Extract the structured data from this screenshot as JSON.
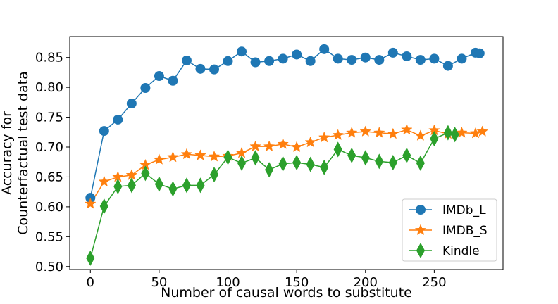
{
  "chart_data": {
    "type": "line",
    "xlabel": "Number of causal words to substitute",
    "ylabel_lines": [
      "Accuracy for",
      "Counterfactual test data"
    ],
    "xlim": [
      -15,
      300
    ],
    "ylim": [
      0.495,
      0.885
    ],
    "xticks": [
      0,
      50,
      100,
      150,
      200,
      250
    ],
    "yticks": [
      0.5,
      0.55,
      0.6,
      0.65,
      0.7,
      0.75,
      0.8,
      0.85
    ],
    "grid": false,
    "legend_position": "lower-right",
    "series": [
      {
        "name": "IMDb_L",
        "color": "#1f77b4",
        "marker": "circle",
        "x": [
          0,
          10,
          20,
          30,
          40,
          50,
          60,
          70,
          80,
          90,
          100,
          110,
          120,
          130,
          140,
          150,
          160,
          170,
          180,
          190,
          200,
          210,
          220,
          230,
          240,
          250,
          260,
          270,
          280,
          283
        ],
        "y": [
          0.615,
          0.727,
          0.746,
          0.773,
          0.799,
          0.819,
          0.811,
          0.845,
          0.831,
          0.83,
          0.844,
          0.86,
          0.842,
          0.844,
          0.848,
          0.855,
          0.844,
          0.864,
          0.848,
          0.846,
          0.85,
          0.846,
          0.858,
          0.852,
          0.846,
          0.848,
          0.836,
          0.848,
          0.858,
          0.857
        ]
      },
      {
        "name": "IMDB_S",
        "color": "#ff7f0e",
        "marker": "star",
        "x": [
          0,
          10,
          20,
          30,
          40,
          50,
          60,
          70,
          80,
          90,
          100,
          110,
          120,
          130,
          140,
          150,
          160,
          170,
          180,
          190,
          200,
          210,
          220,
          230,
          240,
          250,
          260,
          270,
          280,
          285
        ],
        "y": [
          0.605,
          0.642,
          0.65,
          0.653,
          0.67,
          0.679,
          0.683,
          0.688,
          0.686,
          0.684,
          0.685,
          0.69,
          0.701,
          0.701,
          0.705,
          0.7,
          0.708,
          0.716,
          0.72,
          0.724,
          0.726,
          0.724,
          0.722,
          0.729,
          0.719,
          0.728,
          0.722,
          0.724,
          0.723,
          0.726
        ]
      },
      {
        "name": "Kindle",
        "color": "#2ca02c",
        "marker": "thin_diamond",
        "x": [
          0,
          10,
          20,
          30,
          40,
          50,
          60,
          70,
          80,
          90,
          100,
          110,
          120,
          130,
          140,
          150,
          160,
          170,
          180,
          190,
          200,
          210,
          220,
          230,
          240,
          250,
          260,
          265
        ],
        "y": [
          0.514,
          0.601,
          0.634,
          0.636,
          0.656,
          0.638,
          0.63,
          0.636,
          0.636,
          0.654,
          0.683,
          0.673,
          0.682,
          0.662,
          0.672,
          0.674,
          0.671,
          0.666,
          0.696,
          0.686,
          0.682,
          0.676,
          0.674,
          0.686,
          0.673,
          0.714,
          0.724,
          0.721
        ]
      }
    ]
  }
}
